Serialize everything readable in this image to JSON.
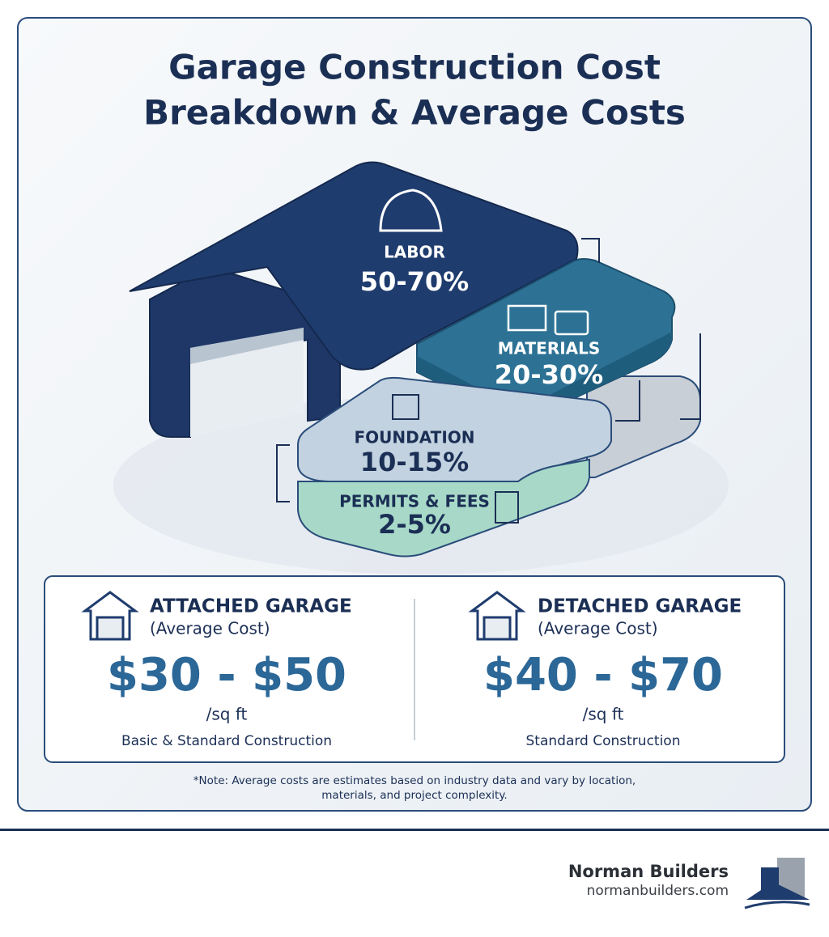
{
  "header": {
    "title_lines": [
      "Garage Construction Cost",
      "Breakdown & Average Costs"
    ]
  },
  "layers": [
    {
      "label": "LABOR",
      "share": "50-70%"
    },
    {
      "label": "MATERIALS",
      "share": "20-30%"
    },
    {
      "label": "FOUNDATION",
      "share": "10-15%"
    },
    {
      "label": "PERMITS & FEES",
      "share": "2-5%"
    }
  ],
  "cards": [
    {
      "title": "ATTACHED GARAGE",
      "subtitle": "(Average Cost)",
      "price": "$30 - $50",
      "unit": "/sq ft",
      "description": "Basic & Standard Construction"
    },
    {
      "title": "DETACHED GARAGE",
      "subtitle": "(Average Cost)",
      "price": "$40 - $70",
      "unit": "/sq ft",
      "description": "Standard Construction"
    }
  ],
  "note": [
    "*Note: Average costs are estimates based on industry data and vary by location,",
    "materials, and project complexity."
  ],
  "footer": {
    "company": "Norman Builders",
    "website": "normanbuilders.com"
  }
}
